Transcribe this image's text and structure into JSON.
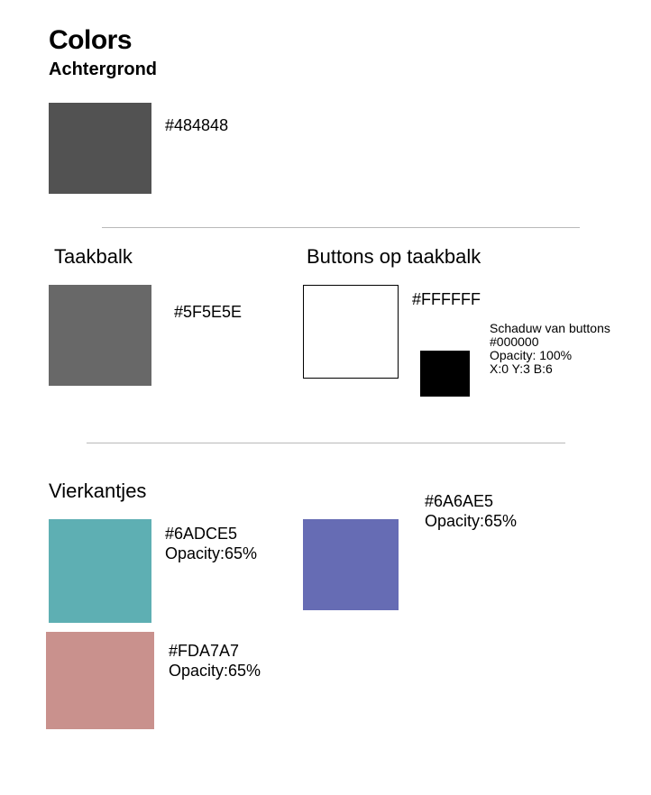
{
  "header": {
    "title": "Colors",
    "subtitle": "Achtergrond"
  },
  "achtergrond": {
    "hex": "#484848",
    "swatch_color": "#525252"
  },
  "taakbalk": {
    "label": "Taakbalk",
    "hex": "#5F5E5E",
    "swatch_color": "#686868"
  },
  "buttons": {
    "label": "Buttons op taakbalk",
    "hex": "#FFFFFF",
    "swatch_color": "#FFFFFF",
    "shadow": {
      "title": "Schaduw van buttons",
      "hex": "#000000",
      "opacity": "Opacity: 100%",
      "offset": "X:0 Y:3 B:6",
      "swatch_color": "#000000"
    }
  },
  "vierkantjes": {
    "label": "Vierkantjes",
    "items": [
      {
        "hex": "#6ADCE5",
        "opacity": "Opacity:65%",
        "swatch_color": "#5EAFB3"
      },
      {
        "hex": "#6A6AE5",
        "opacity": "Opacity:65%",
        "swatch_color": "#666CB4"
      },
      {
        "hex": "#FDA7A7",
        "opacity": "Opacity:65%",
        "swatch_color": "#C9918D"
      }
    ]
  }
}
